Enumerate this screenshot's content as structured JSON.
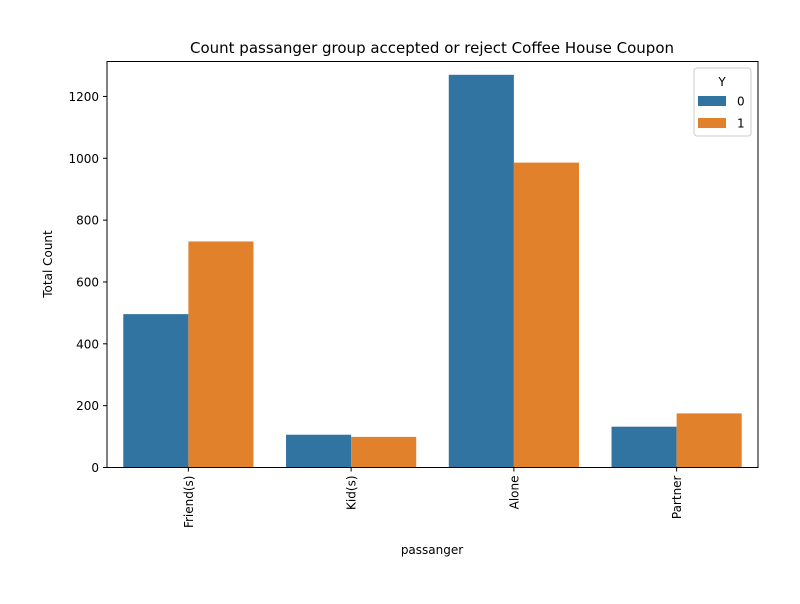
{
  "chart_data": {
    "type": "bar",
    "title": "Count passanger group accepted or reject Coffee House Coupon",
    "xlabel": "passanger",
    "ylabel": "Total Count",
    "categories": [
      "Friend(s)",
      "Kid(s)",
      "Alone",
      "Partner"
    ],
    "series": [
      {
        "name": "0",
        "values": [
          496,
          106,
          1270,
          132
        ],
        "color": "#3274a1"
      },
      {
        "name": "1",
        "values": [
          731,
          99,
          986,
          175
        ],
        "color": "#e1812c"
      }
    ],
    "ylim": [
      0,
      1313
    ],
    "yticks": [
      0,
      200,
      400,
      600,
      800,
      1000,
      1200
    ],
    "legend": {
      "title": "Y",
      "position": "top-right"
    },
    "grid": false,
    "xtick_rotation": "vertical"
  }
}
